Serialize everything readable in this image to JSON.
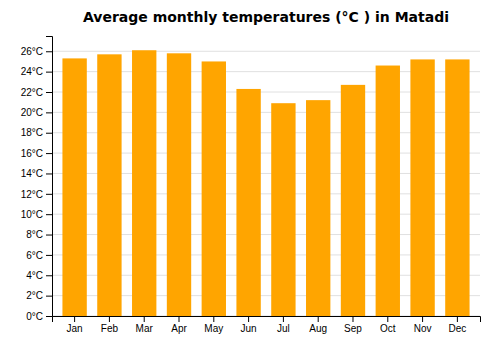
{
  "chart_data": {
    "type": "bar",
    "title": "Average monthly temperatures (°C ) in Matadi",
    "categories": [
      "Jan",
      "Feb",
      "Mar",
      "Apr",
      "May",
      "Jun",
      "Jul",
      "Aug",
      "Sep",
      "Oct",
      "Nov",
      "Dec"
    ],
    "values": [
      25.3,
      25.7,
      26.1,
      25.8,
      25.0,
      22.3,
      20.9,
      21.2,
      22.7,
      24.6,
      25.2,
      25.2
    ],
    "color": "#FFA500",
    "ylim": [
      0,
      27.5
    ],
    "yticks": [
      {
        "value": 0,
        "label": "0°C"
      },
      {
        "value": 2,
        "label": "2°C"
      },
      {
        "value": 4,
        "label": "4°C"
      },
      {
        "value": 6,
        "label": "6°C"
      },
      {
        "value": 8,
        "label": "8°C"
      },
      {
        "value": 10,
        "label": "10°C"
      },
      {
        "value": 12,
        "label": "12°C"
      },
      {
        "value": 14,
        "label": "14°C"
      },
      {
        "value": 16,
        "label": "16°C"
      },
      {
        "value": 18,
        "label": "18°C"
      },
      {
        "value": 20,
        "label": "20°C"
      },
      {
        "value": 22,
        "label": "22°C"
      },
      {
        "value": 24,
        "label": "24°C"
      },
      {
        "value": 26,
        "label": "26°C"
      }
    ],
    "grid": true
  }
}
